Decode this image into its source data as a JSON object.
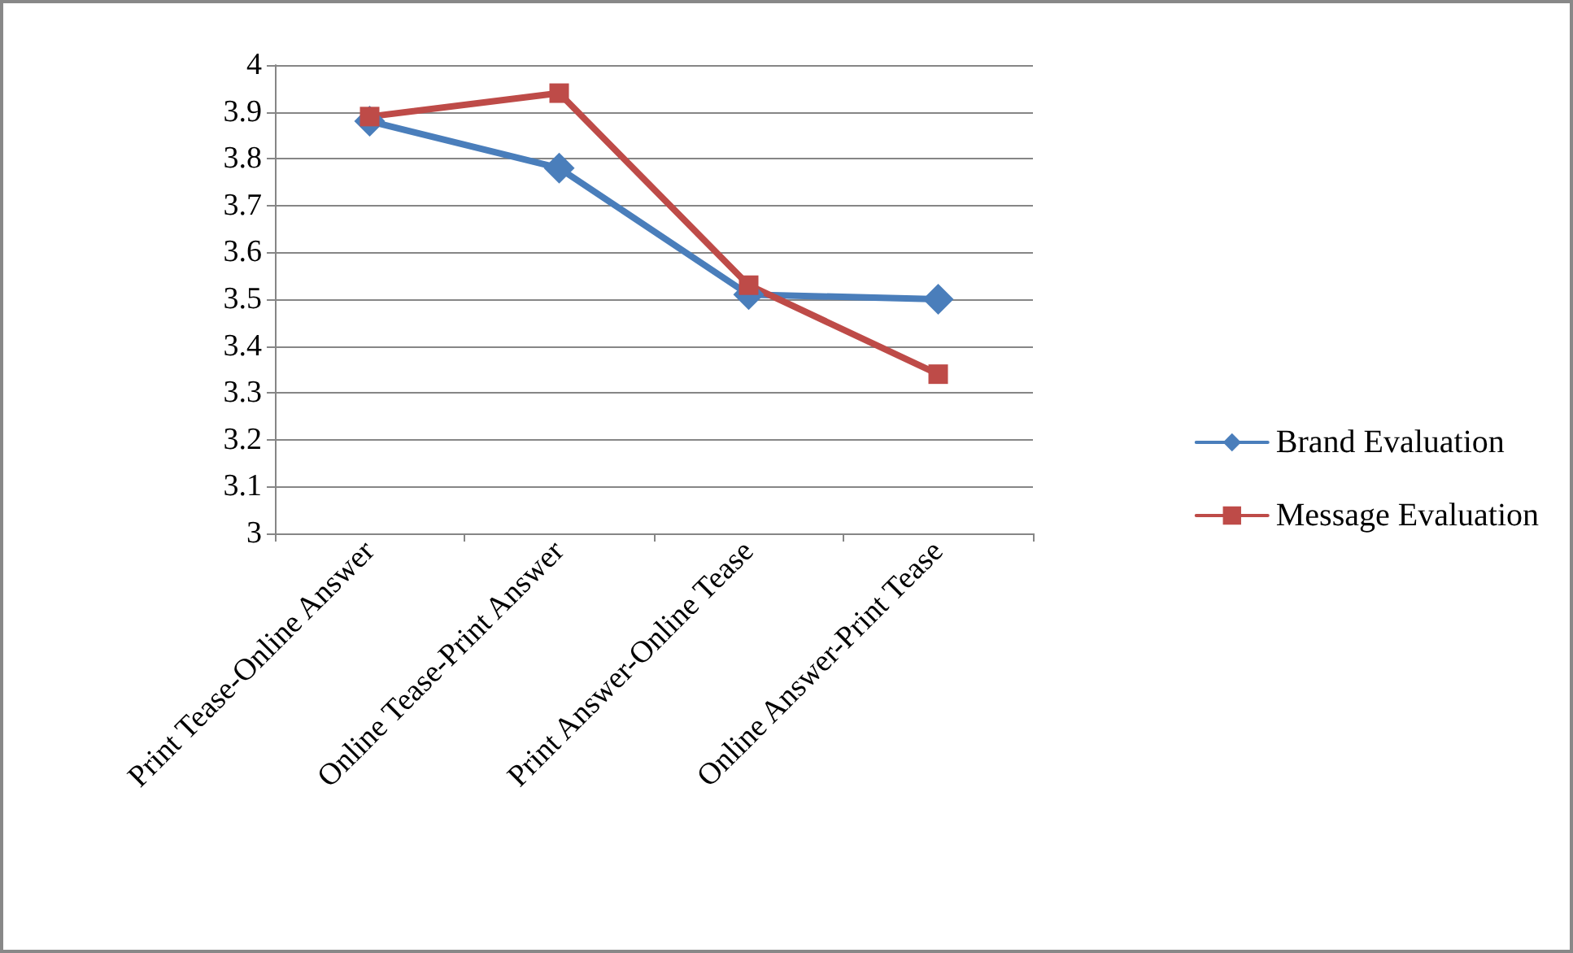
{
  "chart_data": {
    "type": "line",
    "categories": [
      "Print Tease-Online Answer",
      "Online Tease-Print Answer",
      "Print Answer-Online Tease",
      "Online Answer-Print Tease"
    ],
    "series": [
      {
        "name": "Brand Evaluation",
        "color": "#4a7ebb",
        "marker": "diamond",
        "values": [
          3.88,
          3.78,
          3.51,
          3.5
        ]
      },
      {
        "name": "Message Evaluation",
        "color": "#be4b48",
        "marker": "square",
        "values": [
          3.89,
          3.94,
          3.53,
          3.34
        ]
      }
    ],
    "ylim": [
      3,
      4
    ],
    "yticks": [
      3,
      3.1,
      3.2,
      3.3,
      3.4,
      3.5,
      3.6,
      3.7,
      3.8,
      3.9,
      4
    ],
    "grid": "y",
    "legend": "right",
    "line_style": "solid"
  }
}
